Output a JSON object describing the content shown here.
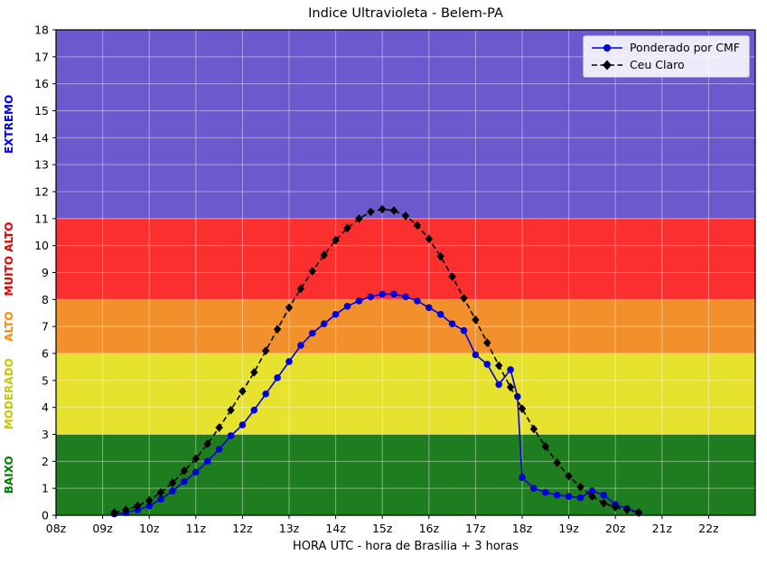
{
  "chart_data": {
    "type": "line",
    "title": "Indice Ultravioleta - Belem-PA",
    "xlabel": "HORA UTC - hora de Brasilia + 3 horas",
    "ylabel": "",
    "xlim": [
      8,
      23
    ],
    "ylim": [
      0,
      18
    ],
    "grid": true,
    "grid_color": "#ffffff",
    "legend_position": "upper right",
    "xticks": {
      "values": [
        8,
        9,
        10,
        11,
        12,
        13,
        14,
        15,
        16,
        17,
        18,
        19,
        20,
        21,
        22
      ],
      "labels": [
        "08z",
        "09z",
        "10z",
        "11z",
        "12z",
        "13z",
        "14z",
        "15z",
        "16z",
        "17z",
        "18z",
        "19z",
        "20z",
        "21z",
        "22z"
      ]
    },
    "yticks": {
      "values": [
        0,
        1,
        2,
        3,
        4,
        5,
        6,
        7,
        8,
        9,
        10,
        11,
        12,
        13,
        14,
        15,
        16,
        17,
        18
      ],
      "labels": [
        "0",
        "1",
        "2",
        "3",
        "4",
        "5",
        "6",
        "7",
        "8",
        "9",
        "10",
        "11",
        "12",
        "13",
        "14",
        "15",
        "16",
        "17",
        "18"
      ]
    },
    "bands": [
      {
        "key": "baixo",
        "label": "BAIXO",
        "from": 0,
        "to": 3,
        "color": "#1e7d1e",
        "label_color": "#008000"
      },
      {
        "key": "moderado",
        "label": "MODERADO",
        "from": 3,
        "to": 6,
        "color": "#e6e22e",
        "label_color": "#c8c800"
      },
      {
        "key": "alto",
        "label": "ALTO",
        "from": 6,
        "to": 8,
        "color": "#f2912b",
        "label_color": "#ff8c00"
      },
      {
        "key": "muito-alto",
        "label": "MUITO ALTO",
        "from": 8,
        "to": 11,
        "color": "#fc2f2f",
        "label_color": "#e60000"
      },
      {
        "key": "extremo",
        "label": "EXTREMO",
        "from": 11,
        "to": 18,
        "color": "#6a5acd",
        "label_color": "#0000ee"
      }
    ],
    "series": [
      {
        "name": "Ponderado por CMF",
        "color": "#0000dd",
        "marker": "circle",
        "linestyle": "solid",
        "x": [
          9.25,
          9.5,
          9.75,
          10.0,
          10.25,
          10.5,
          10.75,
          11.0,
          11.25,
          11.5,
          11.75,
          12.0,
          12.25,
          12.5,
          12.75,
          13.0,
          13.25,
          13.5,
          13.75,
          14.0,
          14.25,
          14.5,
          14.75,
          15.0,
          15.25,
          15.5,
          15.75,
          16.0,
          16.25,
          16.5,
          16.75,
          17.0,
          17.25,
          17.5,
          17.75,
          17.9,
          18.0,
          18.25,
          18.5,
          18.75,
          19.0,
          19.25,
          19.5,
          19.75,
          20.0,
          20.25,
          20.5
        ],
        "y": [
          0.05,
          0.1,
          0.2,
          0.35,
          0.6,
          0.9,
          1.25,
          1.6,
          2.0,
          2.45,
          2.95,
          3.35,
          3.9,
          4.5,
          5.1,
          5.7,
          6.3,
          6.75,
          7.1,
          7.45,
          7.75,
          7.95,
          8.1,
          8.2,
          8.2,
          8.1,
          7.95,
          7.7,
          7.45,
          7.1,
          6.85,
          5.95,
          5.6,
          4.85,
          5.4,
          4.4,
          1.4,
          1.0,
          0.85,
          0.75,
          0.7,
          0.65,
          0.9,
          0.75,
          0.4,
          0.25,
          0.1
        ]
      },
      {
        "name": "Ceu Claro",
        "color": "#000000",
        "marker": "diamond",
        "linestyle": "dashed",
        "x": [
          9.25,
          9.5,
          9.75,
          10.0,
          10.25,
          10.5,
          10.75,
          11.0,
          11.25,
          11.5,
          11.75,
          12.0,
          12.25,
          12.5,
          12.75,
          13.0,
          13.25,
          13.5,
          13.75,
          14.0,
          14.25,
          14.5,
          14.75,
          15.0,
          15.25,
          15.5,
          15.75,
          16.0,
          16.25,
          16.5,
          16.75,
          17.0,
          17.25,
          17.5,
          17.75,
          18.0,
          18.25,
          18.5,
          18.75,
          19.0,
          19.25,
          19.5,
          19.75,
          20.0,
          20.25,
          20.5
        ],
        "y": [
          0.1,
          0.2,
          0.35,
          0.55,
          0.85,
          1.2,
          1.65,
          2.1,
          2.65,
          3.25,
          3.9,
          4.6,
          5.3,
          6.1,
          6.9,
          7.7,
          8.4,
          9.05,
          9.65,
          10.2,
          10.65,
          11.0,
          11.25,
          11.35,
          11.3,
          11.1,
          10.75,
          10.25,
          9.6,
          8.85,
          8.05,
          7.25,
          6.4,
          5.55,
          4.75,
          3.95,
          3.2,
          2.55,
          1.95,
          1.45,
          1.05,
          0.7,
          0.45,
          0.3,
          0.2,
          0.1
        ]
      }
    ]
  }
}
